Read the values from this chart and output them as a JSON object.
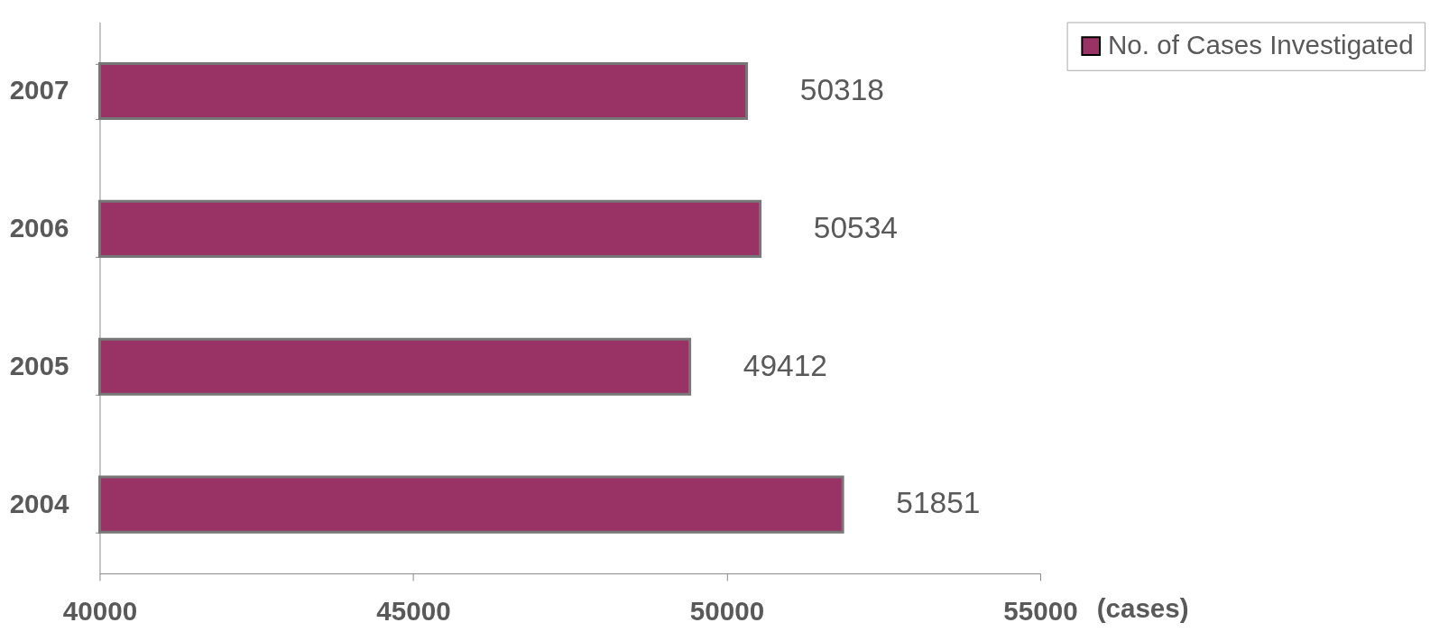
{
  "chart_data": {
    "type": "bar",
    "orientation": "horizontal",
    "xlabel": "(cases)",
    "categories": [
      "2007",
      "2006",
      "2005",
      "2004"
    ],
    "series": [
      {
        "name": "No. of Cases Investigated",
        "color": "#993366",
        "values": [
          50318,
          50534,
          49412,
          51851
        ]
      }
    ],
    "xlim": [
      40000,
      55000
    ],
    "xticks": [
      40000,
      45000,
      50000,
      55000
    ],
    "data_labels": true,
    "grid": false,
    "legend": "right"
  }
}
